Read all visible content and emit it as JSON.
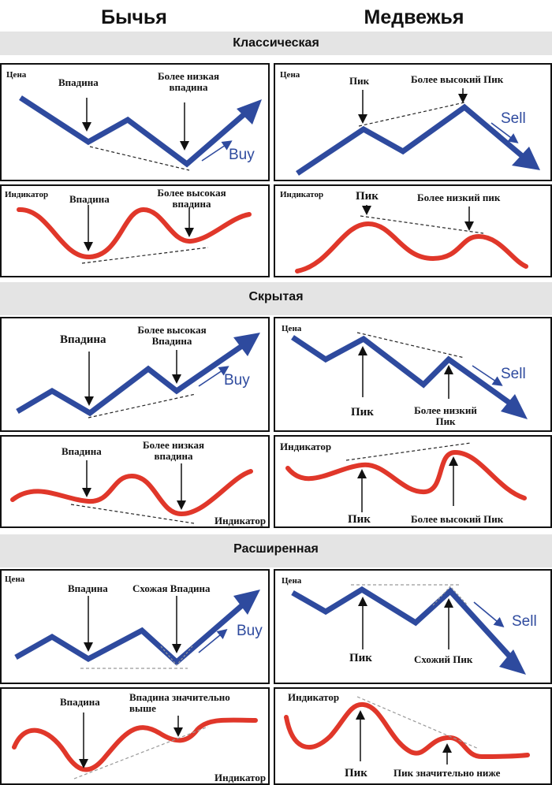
{
  "headers": {
    "bullish": "Бычья",
    "bearish": "Медвежья"
  },
  "sections": {
    "classic": "Классическая",
    "hidden": "Скрытая",
    "extended": "Расширенная"
  },
  "labels": {
    "price": "Цена",
    "indicator": "Индикатор",
    "trough": "Впадина",
    "peak": "Пик",
    "lower_trough": "Более низкая впадина",
    "higher_peak_cap": "Более высокий Пик",
    "higher_trough": "Более высокая впадина",
    "lower_peak": "Более низкий пик",
    "higher_trough_cap": "Более высокая Впадина",
    "lower_peak_cap": "Более низкий Пик",
    "similar_trough": "Схожая Впадина",
    "similar_peak": "Схожий Пик",
    "trough_much_higher": "Впадина значительно выше",
    "peak_much_lower": "Пик значительно ниже",
    "buy": "Buy",
    "sell": "Sell"
  },
  "colors": {
    "price_line": "#2e4a9e",
    "indicator_line": "#e0372a",
    "band": "#e4e4e4",
    "guide": "#222222"
  }
}
